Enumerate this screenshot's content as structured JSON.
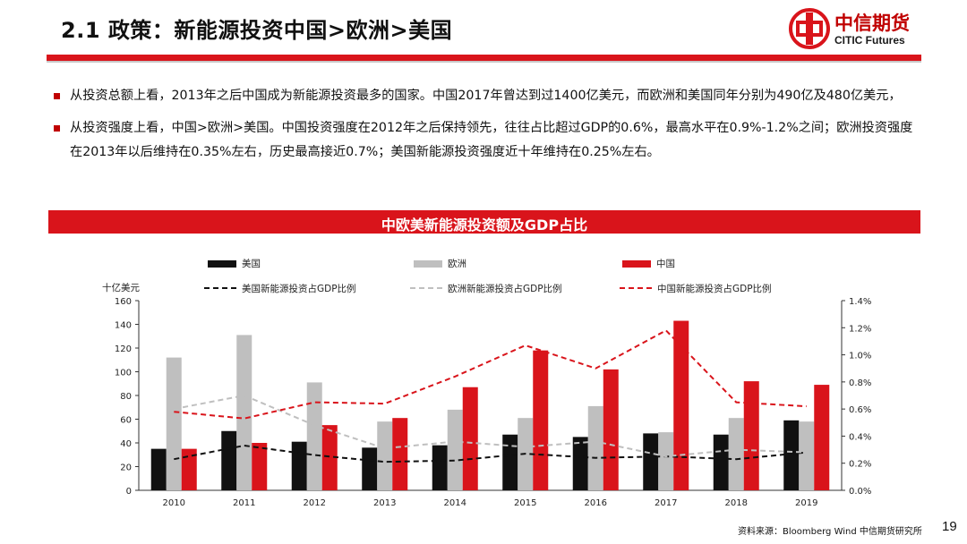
{
  "header": {
    "title": "2.1 政策：新能源投资中国>欧洲>美国",
    "logo_cn": "中信期货",
    "logo_en": "CITIC Futures",
    "accent_color": "#d9141b"
  },
  "bullets": [
    "从投资总额上看，2013年之后中国成为新能源投资最多的国家。中国2017年曾达到过1400亿美元，而欧洲和美国同年分别为490亿及480亿美元，",
    "从投资强度上看，中国>欧洲>美国。中国投资强度在2012年之后保持领先，往往占比超过GDP的0.6%，最高水平在0.9%-1.2%之间；欧洲投资强度在2013年以后维持在0.35%左右，历史最高接近0.7%；美国新能源投资强度近十年维持在0.25%左右。"
  ],
  "banner_title": "中欧美新能源投资额及GDP占比",
  "chart_data": {
    "type": "bar",
    "title": "中欧美新能源投资额及GDP占比",
    "ylabel": "十亿美元",
    "ylim": [
      0,
      160
    ],
    "yticks": [
      0,
      20,
      40,
      60,
      80,
      100,
      120,
      140,
      160
    ],
    "y2lim": [
      0,
      1.4
    ],
    "y2ticks": [
      "0.0%",
      "0.2%",
      "0.4%",
      "0.6%",
      "0.8%",
      "1.0%",
      "1.2%",
      "1.4%"
    ],
    "categories": [
      "2010",
      "2011",
      "2012",
      "2013",
      "2014",
      "2015",
      "2016",
      "2017",
      "2018",
      "2019"
    ],
    "series": [
      {
        "name": "美国",
        "kind": "bar",
        "color": "#111111",
        "values": [
          35,
          50,
          41,
          36,
          38,
          47,
          45,
          48,
          47,
          59
        ]
      },
      {
        "name": "欧洲",
        "kind": "bar",
        "color": "#bfbfbf",
        "values": [
          112,
          131,
          91,
          58,
          68,
          61,
          71,
          49,
          61,
          58
        ]
      },
      {
        "name": "中国",
        "kind": "bar",
        "color": "#d9141b",
        "values": [
          35,
          40,
          55,
          61,
          87,
          118,
          102,
          143,
          92,
          89
        ]
      },
      {
        "name": "美国新能源投资占GDP比例",
        "kind": "line",
        "axis": "right",
        "color": "#111111",
        "values": [
          0.23,
          0.33,
          0.26,
          0.21,
          0.22,
          0.27,
          0.24,
          0.25,
          0.23,
          0.28
        ]
      },
      {
        "name": "欧洲新能源投资占GDP比例",
        "kind": "line",
        "axis": "right",
        "color": "#bfbfbf",
        "values": [
          0.6,
          0.7,
          0.48,
          0.31,
          0.36,
          0.32,
          0.36,
          0.25,
          0.3,
          0.28
        ]
      },
      {
        "name": "中国新能源投资占GDP比例",
        "kind": "line",
        "axis": "right",
        "color": "#d9141b",
        "values": [
          0.58,
          0.53,
          0.65,
          0.64,
          0.84,
          1.07,
          0.9,
          1.18,
          0.65,
          0.62
        ]
      }
    ],
    "legend_position": "top"
  },
  "footer": {
    "source": "资料来源：Bloomberg Wind 中信期货研究所",
    "page_number": "19"
  }
}
